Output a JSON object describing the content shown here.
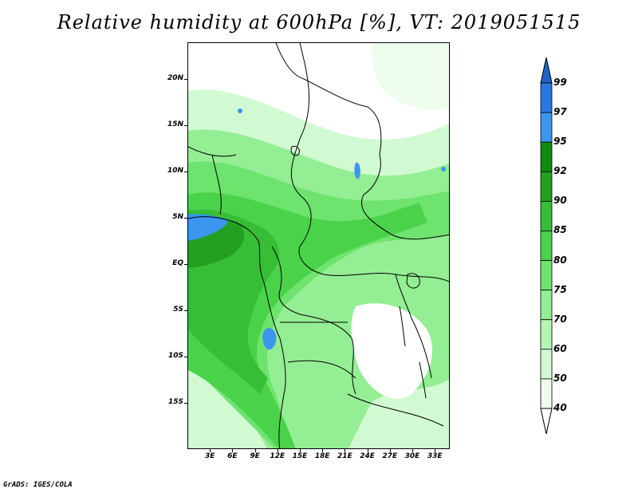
{
  "title": "Relative humidity at 600hPa [%], VT: 2019051515",
  "credit": "GrADS: IGES/COLA",
  "lat_labels": [
    {
      "text": "20N",
      "lat": 20
    },
    {
      "text": "15N",
      "lat": 15
    },
    {
      "text": "10N",
      "lat": 10
    },
    {
      "text": "5N",
      "lat": 5
    },
    {
      "text": "EQ",
      "lat": 0
    },
    {
      "text": "5S",
      "lat": -5
    },
    {
      "text": "10S",
      "lat": -10
    },
    {
      "text": "15S",
      "lat": -15
    }
  ],
  "lon_labels": [
    {
      "text": "3E",
      "lon": 3
    },
    {
      "text": "6E",
      "lon": 6
    },
    {
      "text": "9E",
      "lon": 9
    },
    {
      "text": "12E",
      "lon": 12
    },
    {
      "text": "15E",
      "lon": 15
    },
    {
      "text": "18E",
      "lon": 18
    },
    {
      "text": "21E",
      "lon": 21
    },
    {
      "text": "24E",
      "lon": 24
    },
    {
      "text": "27E",
      "lon": 27
    },
    {
      "text": "30E",
      "lon": 30
    },
    {
      "text": "33E",
      "lon": 33
    }
  ],
  "extent": {
    "lon_min": 0,
    "lon_max": 35,
    "lat_min": -20,
    "lat_max": 24
  },
  "colorbar": {
    "levels": [
      "99",
      "97",
      "95",
      "92",
      "90",
      "85",
      "80",
      "75",
      "70",
      "60",
      "50",
      "40"
    ],
    "colors": [
      "#1c64c8",
      "#2a78e0",
      "#3c96f0",
      "#0f8c10",
      "#23a022",
      "#37be37",
      "#4bd24b",
      "#6ee36e",
      "#94ee94",
      "#b4f5b4",
      "#d2fad2",
      "#eefdee",
      "#ffffff"
    ]
  }
}
